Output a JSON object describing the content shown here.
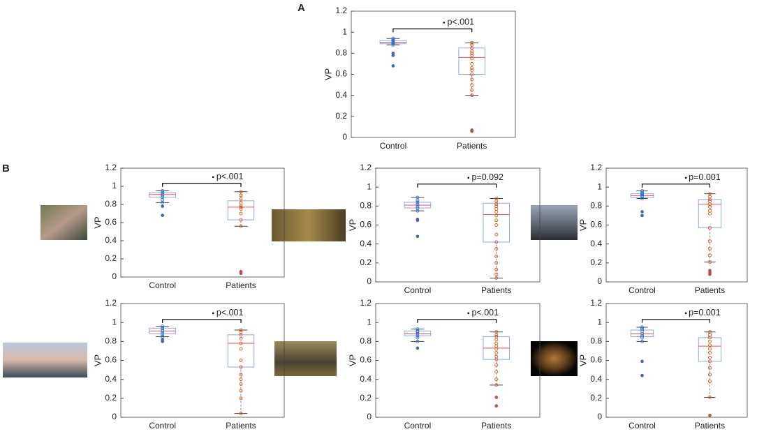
{
  "panel_labels": [
    "A",
    "B"
  ],
  "chart_data": [
    {
      "type": "box",
      "ylabel": "VP",
      "annotation": "p<.001",
      "categories": [
        "Control",
        "Patients"
      ],
      "ylim": [
        0,
        1.2
      ],
      "yticks": [
        0,
        0.2,
        0.4,
        0.6,
        0.8,
        1,
        1.2
      ],
      "series": [
        {
          "name": "Control",
          "color": "#2f6fd0",
          "whislo": 0.88,
          "q1": 0.89,
          "med": 0.905,
          "q3": 0.92,
          "whishi": 0.94,
          "points": [
            0.94,
            0.93,
            0.92,
            0.91,
            0.9,
            0.89,
            0.88
          ],
          "outliers": [
            0.8,
            0.78,
            0.68
          ]
        },
        {
          "name": "Patients",
          "color": "#d95319",
          "whislo": 0.4,
          "q1": 0.6,
          "med": 0.76,
          "q3": 0.85,
          "whishi": 0.9,
          "points": [
            0.9,
            0.88,
            0.85,
            0.82,
            0.8,
            0.78,
            0.75,
            0.7,
            0.66,
            0.64,
            0.6,
            0.55,
            0.5,
            0.45,
            0.4
          ],
          "outliers": [
            0.07,
            0.06
          ]
        }
      ]
    },
    {
      "type": "box",
      "ylabel": "VP",
      "annotation": "p<.001",
      "categories": [
        "Control",
        "Patients"
      ],
      "ylim": [
        0,
        1.2
      ],
      "yticks": [
        0,
        0.2,
        0.4,
        0.6,
        0.8,
        1,
        1.2
      ],
      "series": [
        {
          "name": "Control",
          "color": "#2f6fd0",
          "whislo": 0.82,
          "q1": 0.88,
          "med": 0.91,
          "q3": 0.93,
          "whishi": 0.95,
          "points": [
            0.95,
            0.93,
            0.91,
            0.9,
            0.88,
            0.85,
            0.82
          ],
          "outliers": [
            0.78,
            0.68
          ]
        },
        {
          "name": "Patients",
          "color": "#d95319",
          "whislo": 0.56,
          "q1": 0.63,
          "med": 0.77,
          "q3": 0.84,
          "whishi": 0.94,
          "points": [
            0.94,
            0.9,
            0.86,
            0.82,
            0.79,
            0.77,
            0.75,
            0.7,
            0.63,
            0.56
          ],
          "outliers": [
            0.06,
            0.04
          ]
        }
      ]
    },
    {
      "type": "box",
      "ylabel": "VP",
      "annotation": "p=0.092",
      "categories": [
        "Control",
        "Patients"
      ],
      "ylim": [
        0,
        1.2
      ],
      "yticks": [
        0,
        0.2,
        0.4,
        0.6,
        0.8,
        1,
        1.2
      ],
      "series": [
        {
          "name": "Control",
          "color": "#2f6fd0",
          "whislo": 0.75,
          "q1": 0.78,
          "med": 0.81,
          "q3": 0.84,
          "whishi": 0.89,
          "points": [
            0.89,
            0.86,
            0.84,
            0.82,
            0.8,
            0.78,
            0.75
          ],
          "outliers": [
            0.66,
            0.65,
            0.48
          ]
        },
        {
          "name": "Patients",
          "color": "#d95319",
          "whislo": 0.04,
          "q1": 0.42,
          "med": 0.71,
          "q3": 0.83,
          "whishi": 0.88,
          "points": [
            0.88,
            0.85,
            0.82,
            0.8,
            0.77,
            0.74,
            0.7,
            0.65,
            0.6,
            0.5,
            0.42,
            0.35,
            0.27,
            0.2,
            0.13,
            0.08,
            0.04
          ],
          "outliers": []
        }
      ]
    },
    {
      "type": "box",
      "ylabel": "VP",
      "annotation": "p=0.001",
      "categories": [
        "Control",
        "Patients"
      ],
      "ylim": [
        0,
        1.2
      ],
      "yticks": [
        0,
        0.2,
        0.4,
        0.6,
        0.8,
        1,
        1.2
      ],
      "series": [
        {
          "name": "Control",
          "color": "#2f6fd0",
          "whislo": 0.88,
          "q1": 0.89,
          "med": 0.91,
          "q3": 0.93,
          "whishi": 0.96,
          "points": [
            0.96,
            0.94,
            0.93,
            0.92,
            0.91,
            0.9,
            0.88
          ],
          "outliers": [
            0.74,
            0.7
          ]
        },
        {
          "name": "Patients",
          "color": "#d95319",
          "whislo": 0.21,
          "q1": 0.57,
          "med": 0.82,
          "q3": 0.87,
          "whishi": 0.93,
          "points": [
            0.93,
            0.9,
            0.87,
            0.85,
            0.82,
            0.79,
            0.75,
            0.72,
            0.57,
            0.43,
            0.35,
            0.28,
            0.21
          ],
          "outliers": [
            0.12,
            0.1,
            0.08
          ]
        }
      ]
    },
    {
      "type": "box",
      "ylabel": "VP",
      "annotation": "p<.001",
      "categories": [
        "Control",
        "Patients"
      ],
      "ylim": [
        0,
        1.2
      ],
      "yticks": [
        0,
        0.2,
        0.4,
        0.6,
        0.8,
        1,
        1.2
      ],
      "series": [
        {
          "name": "Control",
          "color": "#2f6fd0",
          "whislo": 0.85,
          "q1": 0.88,
          "med": 0.91,
          "q3": 0.94,
          "whishi": 0.96,
          "points": [
            0.96,
            0.94,
            0.92,
            0.91,
            0.89,
            0.87,
            0.85
          ],
          "outliers": [
            0.82,
            0.8
          ]
        },
        {
          "name": "Patients",
          "color": "#d95319",
          "whislo": 0.04,
          "q1": 0.53,
          "med": 0.78,
          "q3": 0.87,
          "whishi": 0.92,
          "points": [
            0.92,
            0.9,
            0.87,
            0.83,
            0.78,
            0.72,
            0.6,
            0.53,
            0.45,
            0.4,
            0.35,
            0.28,
            0.2,
            0.04
          ],
          "outliers": []
        }
      ]
    },
    {
      "type": "box",
      "ylabel": "VP",
      "annotation": "p<.001",
      "categories": [
        "Control",
        "Patients"
      ],
      "ylim": [
        0,
        1.2
      ],
      "yticks": [
        0,
        0.2,
        0.4,
        0.6,
        0.8,
        1,
        1.2
      ],
      "series": [
        {
          "name": "Control",
          "color": "#2f6fd0",
          "whislo": 0.8,
          "q1": 0.86,
          "med": 0.88,
          "q3": 0.91,
          "whishi": 0.93,
          "points": [
            0.93,
            0.91,
            0.9,
            0.88,
            0.86,
            0.84,
            0.8
          ],
          "outliers": [
            0.73
          ]
        },
        {
          "name": "Patients",
          "color": "#d95319",
          "whislo": 0.34,
          "q1": 0.61,
          "med": 0.73,
          "q3": 0.85,
          "whishi": 0.9,
          "points": [
            0.9,
            0.87,
            0.85,
            0.82,
            0.78,
            0.75,
            0.72,
            0.68,
            0.64,
            0.61,
            0.55,
            0.48,
            0.4,
            0.34
          ],
          "outliers": [
            0.21,
            0.12
          ]
        }
      ]
    },
    {
      "type": "box",
      "ylabel": "VP",
      "annotation": "p=0.001",
      "categories": [
        "Control",
        "Patients"
      ],
      "ylim": [
        0,
        1.2
      ],
      "yticks": [
        0,
        0.2,
        0.4,
        0.6,
        0.8,
        1,
        1.2
      ],
      "series": [
        {
          "name": "Control",
          "color": "#2f6fd0",
          "whislo": 0.8,
          "q1": 0.85,
          "med": 0.88,
          "q3": 0.92,
          "whishi": 0.95,
          "points": [
            0.95,
            0.93,
            0.91,
            0.88,
            0.86,
            0.84,
            0.8
          ],
          "outliers": [
            0.59,
            0.44
          ]
        },
        {
          "name": "Patients",
          "color": "#d95319",
          "whislo": 0.21,
          "q1": 0.59,
          "med": 0.75,
          "q3": 0.84,
          "whishi": 0.9,
          "points": [
            0.9,
            0.87,
            0.84,
            0.8,
            0.76,
            0.72,
            0.68,
            0.63,
            0.59,
            0.52,
            0.45,
            0.38,
            0.21
          ],
          "outliers": [
            0.02
          ]
        }
      ]
    }
  ]
}
